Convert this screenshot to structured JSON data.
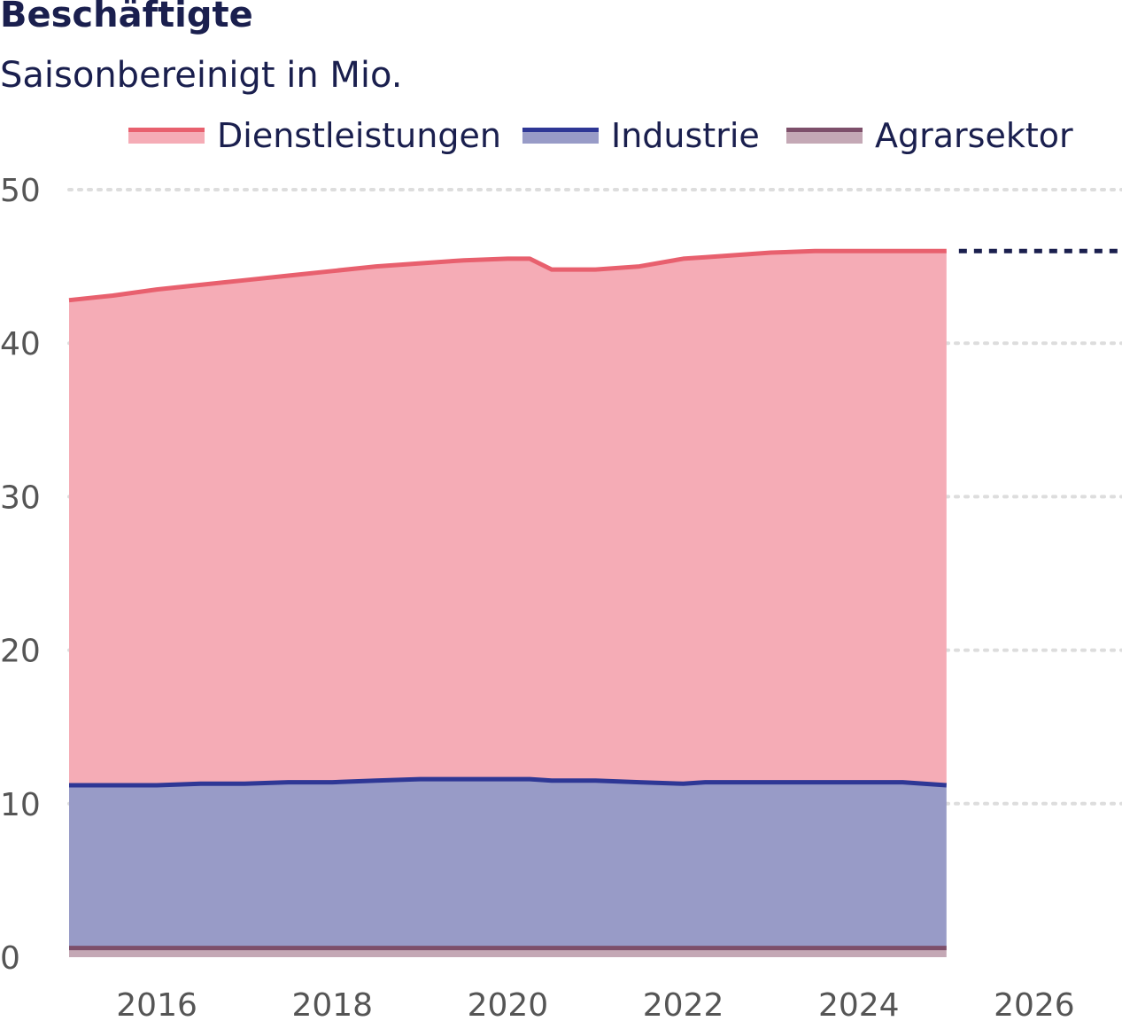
{
  "chart_data": {
    "type": "area",
    "stacked": true,
    "title": "Beschäftigte",
    "subtitle": "Saisonbereinigt in Mio.",
    "xlabel": "",
    "ylabel": "",
    "xlim": [
      2015,
      2027
    ],
    "ylim": [
      0,
      50
    ],
    "y_ticks": [
      0,
      10,
      20,
      30,
      40,
      50
    ],
    "x_ticks": [
      2016,
      2018,
      2020,
      2022,
      2024,
      2026
    ],
    "grid": "horizontal dotted",
    "legend_position": "top",
    "projection_value": 46.0,
    "x": [
      2015.0,
      2015.5,
      2016.0,
      2016.5,
      2017.0,
      2017.5,
      2018.0,
      2018.5,
      2019.0,
      2019.5,
      2020.0,
      2020.25,
      2020.5,
      2021.0,
      2021.5,
      2022.0,
      2022.25,
      2022.5,
      2023.0,
      2023.5,
      2024.0,
      2024.5,
      2025.0
    ],
    "series": [
      {
        "name": "Agrarsektor",
        "color": "#7d4f6a",
        "fill": "#c4a8b5",
        "values": [
          0.6,
          0.6,
          0.6,
          0.6,
          0.6,
          0.6,
          0.6,
          0.6,
          0.6,
          0.6,
          0.6,
          0.6,
          0.6,
          0.6,
          0.6,
          0.6,
          0.6,
          0.6,
          0.6,
          0.6,
          0.6,
          0.6,
          0.6
        ]
      },
      {
        "name": "Industrie",
        "color": "#2e3795",
        "fill": "#989bc7",
        "stack_top": [
          11.2,
          11.2,
          11.2,
          11.3,
          11.3,
          11.4,
          11.4,
          11.5,
          11.6,
          11.6,
          11.6,
          11.6,
          11.5,
          11.5,
          11.4,
          11.3,
          11.4,
          11.4,
          11.4,
          11.4,
          11.4,
          11.4,
          11.2
        ]
      },
      {
        "name": "Dienstleistungen",
        "color": "#e8606e",
        "fill": "#f5acb6",
        "stack_top": [
          42.8,
          43.1,
          43.5,
          43.8,
          44.1,
          44.4,
          44.7,
          45.0,
          45.2,
          45.4,
          45.5,
          45.5,
          44.8,
          44.8,
          45.0,
          45.5,
          45.6,
          45.7,
          45.9,
          46.0,
          46.0,
          46.0,
          46.0
        ]
      }
    ],
    "legend": [
      {
        "label": "Dienstleistungen",
        "color": "#e8606e",
        "fill": "#f5acb6"
      },
      {
        "label": "Industrie",
        "color": "#2e3795",
        "fill": "#989bc7"
      },
      {
        "label": "Agrarsektor",
        "color": "#7d4f6a",
        "fill": "#c4a8b5"
      }
    ]
  }
}
